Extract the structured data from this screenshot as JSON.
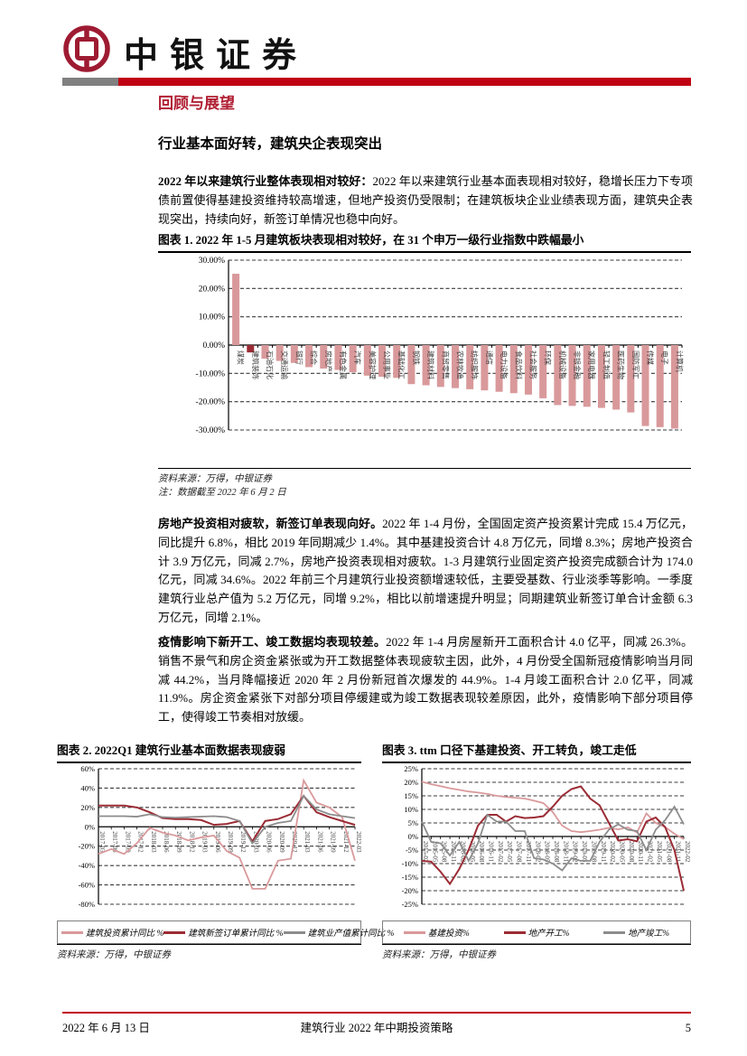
{
  "header": {
    "brand": "中银证券"
  },
  "section": {
    "kicker": "回顾与展望",
    "heading": "行业基本面好转，建筑央企表现突出"
  },
  "paragraphs": [
    {
      "lead": "2022 年以来建筑行业整体表现相对较好：",
      "body": "2022 年以来建筑行业基本面表现相对较好，稳增长压力下专项债前置使得基建投资维持较高增速，但地产投资仍受限制；在建筑板块企业业绩表现方面，建筑央企表现突出，持续向好，新签订单情况也稳中向好。"
    },
    {
      "lead": "房地产投资相对疲软，新签订单表现向好。",
      "body": "2022 年 1-4 月份，全国固定资产投资累计完成 15.4 万亿元，同比提升 6.8%，相比 2019 年同期减少 1.4%。其中基建投资合计 4.8 万亿元，同增 8.3%；房地产投资合计 3.9 万亿元，同减 2.7%，房地产投资表现相对疲软。1-3 月建筑行业固定资产投资完成额合计为 174.0 亿元，同减 34.6%。2022 年前三个月建筑行业投资额增速较低，主要受基数、行业淡季等影响。一季度建筑行业总产值为 5.2 万亿元，同增 9.2%，相比以前增速提升明显；同期建筑业新签订单合计金额 6.3 万亿元，同增 2.1%。"
    },
    {
      "lead": "疫情影响下新开工、竣工数据均表现较差。",
      "body": "2022 年 1-4 月房屋新开工面积合计 4.0 亿平，同减 26.3%。销售不景气和房企资金紧张或为开工数据整体表现疲软主因，此外，4 月份受全国新冠疫情影响当月同减 44.2%，当月降幅接近 2020 年 2 月份新冠首次爆发的 44.9%。1-4 月竣工面积合计 2.0 亿平，同减 11.9%。房企资金紧张下对部分项目停缓建或为竣工数据表现较差原因，此外，疫情影响下部分项目停工，使得竣工节奏相对放缓。"
    }
  ],
  "figure1": {
    "title": "图表 1. 2022 年 1-5 月建筑板块表现相对较好，在 31 个申万一级行业指数中跌幅最小",
    "source": "资料来源：万得，中银证券",
    "note": "注：数据截至 2022 年 6 月 2 日"
  },
  "figure2": {
    "title": "图表 2. 2022Q1 建筑行业基本面数据表现疲弱",
    "source": "资料来源：万得，中银证券"
  },
  "figure3": {
    "title": "图表 3. ttm 口径下基建投资、开工转负，竣工走低",
    "source": "资料来源：万得，中银证券"
  },
  "footer": {
    "date": "2022 年 6 月 13 日",
    "doc_title": "建筑行业 2022 年中期投资策略",
    "page": "5"
  },
  "colors": {
    "header_red": "#c00013",
    "kicker_red": "#b01e32",
    "logo_red": "#9e1b32",
    "pink": "#d9999b",
    "dark_red": "#9b2c35",
    "gray": "#8c8c8c"
  },
  "chart_data": [
    {
      "type": "bar",
      "title": "2022年1-5月申万一级行业指数涨跌幅",
      "ylim": [
        -30,
        30
      ],
      "yticks": [
        30,
        20,
        10,
        0,
        -10,
        -20,
        -30
      ],
      "ytick_labels": [
        "30.00%",
        "20.00%",
        "10.00%",
        "0.00%",
        "-10.00%",
        "-20.00%",
        "-30.00%"
      ],
      "grid": "dashed-horizontal",
      "bar_color": "#d9999b",
      "highlight_index": 1,
      "highlight_color": "#9b2c35",
      "categories": [
        "煤炭",
        "建筑装饰",
        "石油石化",
        "交通运输",
        "银行",
        "综合",
        "房地产",
        "有色金属",
        "汽车",
        "美容护理",
        "公用事业",
        "基础化工",
        "钢铁",
        "建筑材料",
        "商贸零售",
        "农林牧渔",
        "纺织服饰",
        "通信",
        "电力设备",
        "食品饮料",
        "社会服务",
        "环保",
        "机械设备",
        "非银金融",
        "家用电器",
        "轻工制造",
        "医药生物",
        "国防军工",
        "传媒",
        "电子",
        "计算机"
      ],
      "values": [
        25.2,
        -2.6,
        -4.8,
        -5.6,
        -6.3,
        -7.8,
        -8.3,
        -8.8,
        -9.6,
        -10.8,
        -11.2,
        -11.6,
        -13.8,
        -14.2,
        -14.8,
        -15.2,
        -15.6,
        -16.0,
        -16.5,
        -17.0,
        -17.5,
        -18.8,
        -21.2,
        -21.5,
        -21.8,
        -22.2,
        -22.8,
        -23.8,
        -28.6,
        -29.0,
        -29.5
      ]
    },
    {
      "type": "line",
      "title": "2022Q1建筑行业基本面数据",
      "ylim": [
        -80,
        60
      ],
      "yticks": [
        60,
        40,
        20,
        0,
        -20,
        -40,
        -60,
        -80
      ],
      "ytick_labels": [
        "60%",
        "40%",
        "20%",
        "0%",
        "-20%",
        "-40%",
        "-60%",
        "-80%"
      ],
      "grid": "dashed-horizontal",
      "legend_position": "bottom",
      "x": [
        "2017-03",
        "2017-06",
        "2017-09",
        "2017-12",
        "2018-03",
        "2018-06",
        "2018-09",
        "2018-12",
        "2019-03",
        "2019-06",
        "2019-09",
        "2019-12",
        "2020-03",
        "2020-06",
        "2020-09",
        "2020-12",
        "2021-03",
        "2021-06",
        "2021-09",
        "2021-12",
        "2022-03"
      ],
      "series": [
        {
          "name": "建筑投资累计同比 %",
          "color": "#d9999b",
          "width": 1.8,
          "values": [
            -28,
            -23,
            -28,
            -17,
            -1,
            -6,
            -9,
            -14,
            -11,
            -9,
            -25,
            -32,
            -64,
            -64,
            -35,
            -33,
            48,
            25,
            20,
            10,
            -35
          ]
        },
        {
          "name": "建筑新签订单累计同比 %",
          "color": "#9b2c35",
          "width": 2,
          "values": [
            22,
            22,
            22,
            20,
            15,
            9,
            8,
            8,
            7,
            2,
            3,
            6,
            -15,
            6,
            8,
            13,
            32,
            15,
            10,
            6,
            2
          ]
        },
        {
          "name": "建筑业产值累计同比 %",
          "color": "#8c8c8c",
          "width": 1.8,
          "values": [
            11,
            11,
            11,
            10.5,
            13,
            10,
            9.5,
            10,
            10.5,
            11,
            10,
            6,
            -17,
            0,
            4,
            6,
            32,
            18,
            13,
            11,
            9
          ]
        }
      ]
    },
    {
      "type": "line",
      "title": "ttm口径下基建投资、地产开工、地产竣工",
      "ylim": [
        -25,
        25
      ],
      "yticks": [
        25,
        20,
        15,
        10,
        5,
        0,
        -5,
        -10,
        -15,
        -20,
        -25
      ],
      "ytick_labels": [
        "25%",
        "20%",
        "15%",
        "10%",
        "5%",
        "0%",
        "-5%",
        "-10%",
        "-15%",
        "-20%",
        "-25%"
      ],
      "grid": "dashed-horizontal",
      "legend_position": "bottom",
      "x": [
        "2015-02",
        "2015-05",
        "2015-08",
        "2015-11",
        "2016-02",
        "2016-05",
        "2016-08",
        "2016-11",
        "2017-02",
        "2017-05",
        "2017-08",
        "2017-11",
        "2018-02",
        "2018-05",
        "2018-08",
        "2018-11",
        "2019-02",
        "2019-05",
        "2019-08",
        "2019-11",
        "2020-02",
        "2020-05",
        "2020-08",
        "2020-11",
        "2021-02",
        "2021-05",
        "2021-08",
        "2021-11",
        "2022-02"
      ],
      "series": [
        {
          "name": "基建投资%",
          "color": "#d9999b",
          "width": 1.8,
          "values": [
            20.2,
            19.3,
            18.6,
            17.8,
            17.2,
            16.6,
            16.2,
            15.7,
            15.0,
            14.6,
            14.3,
            14.0,
            13.2,
            12.3,
            9.0,
            4.0,
            2.0,
            1.6,
            2.0,
            2.5,
            3.2,
            2.6,
            3.4,
            1.5,
            8.5,
            5.0,
            3.5,
            1.0,
            -1.0
          ]
        },
        {
          "name": "地产开工%",
          "color": "#9b2c35",
          "width": 2,
          "values": [
            -9.0,
            -9.3,
            -13.0,
            -17.5,
            -12.0,
            -5.0,
            4.0,
            8.0,
            8.0,
            5.5,
            7.5,
            6.8,
            7.0,
            7.5,
            11.0,
            15.0,
            17.5,
            18.5,
            14.0,
            11.5,
            5.0,
            -1.5,
            -1.0,
            -1.8,
            5.5,
            7.0,
            3.5,
            -5.0,
            -20.0
          ]
        },
        {
          "name": "地产竣工%",
          "color": "#8c8c8c",
          "width": 1.8,
          "values": [
            5.5,
            -2.0,
            -2.5,
            -7.0,
            -2.0,
            -9.0,
            -2.5,
            8.0,
            5.5,
            5.5,
            2.0,
            2.0,
            -8.0,
            -8.5,
            -10.0,
            -12.5,
            -8.0,
            -9.0,
            -9.0,
            -2.0,
            2.5,
            4.5,
            2.5,
            2.0,
            -5.0,
            2.5,
            6.0,
            11.0,
            4.5
          ]
        }
      ]
    }
  ]
}
